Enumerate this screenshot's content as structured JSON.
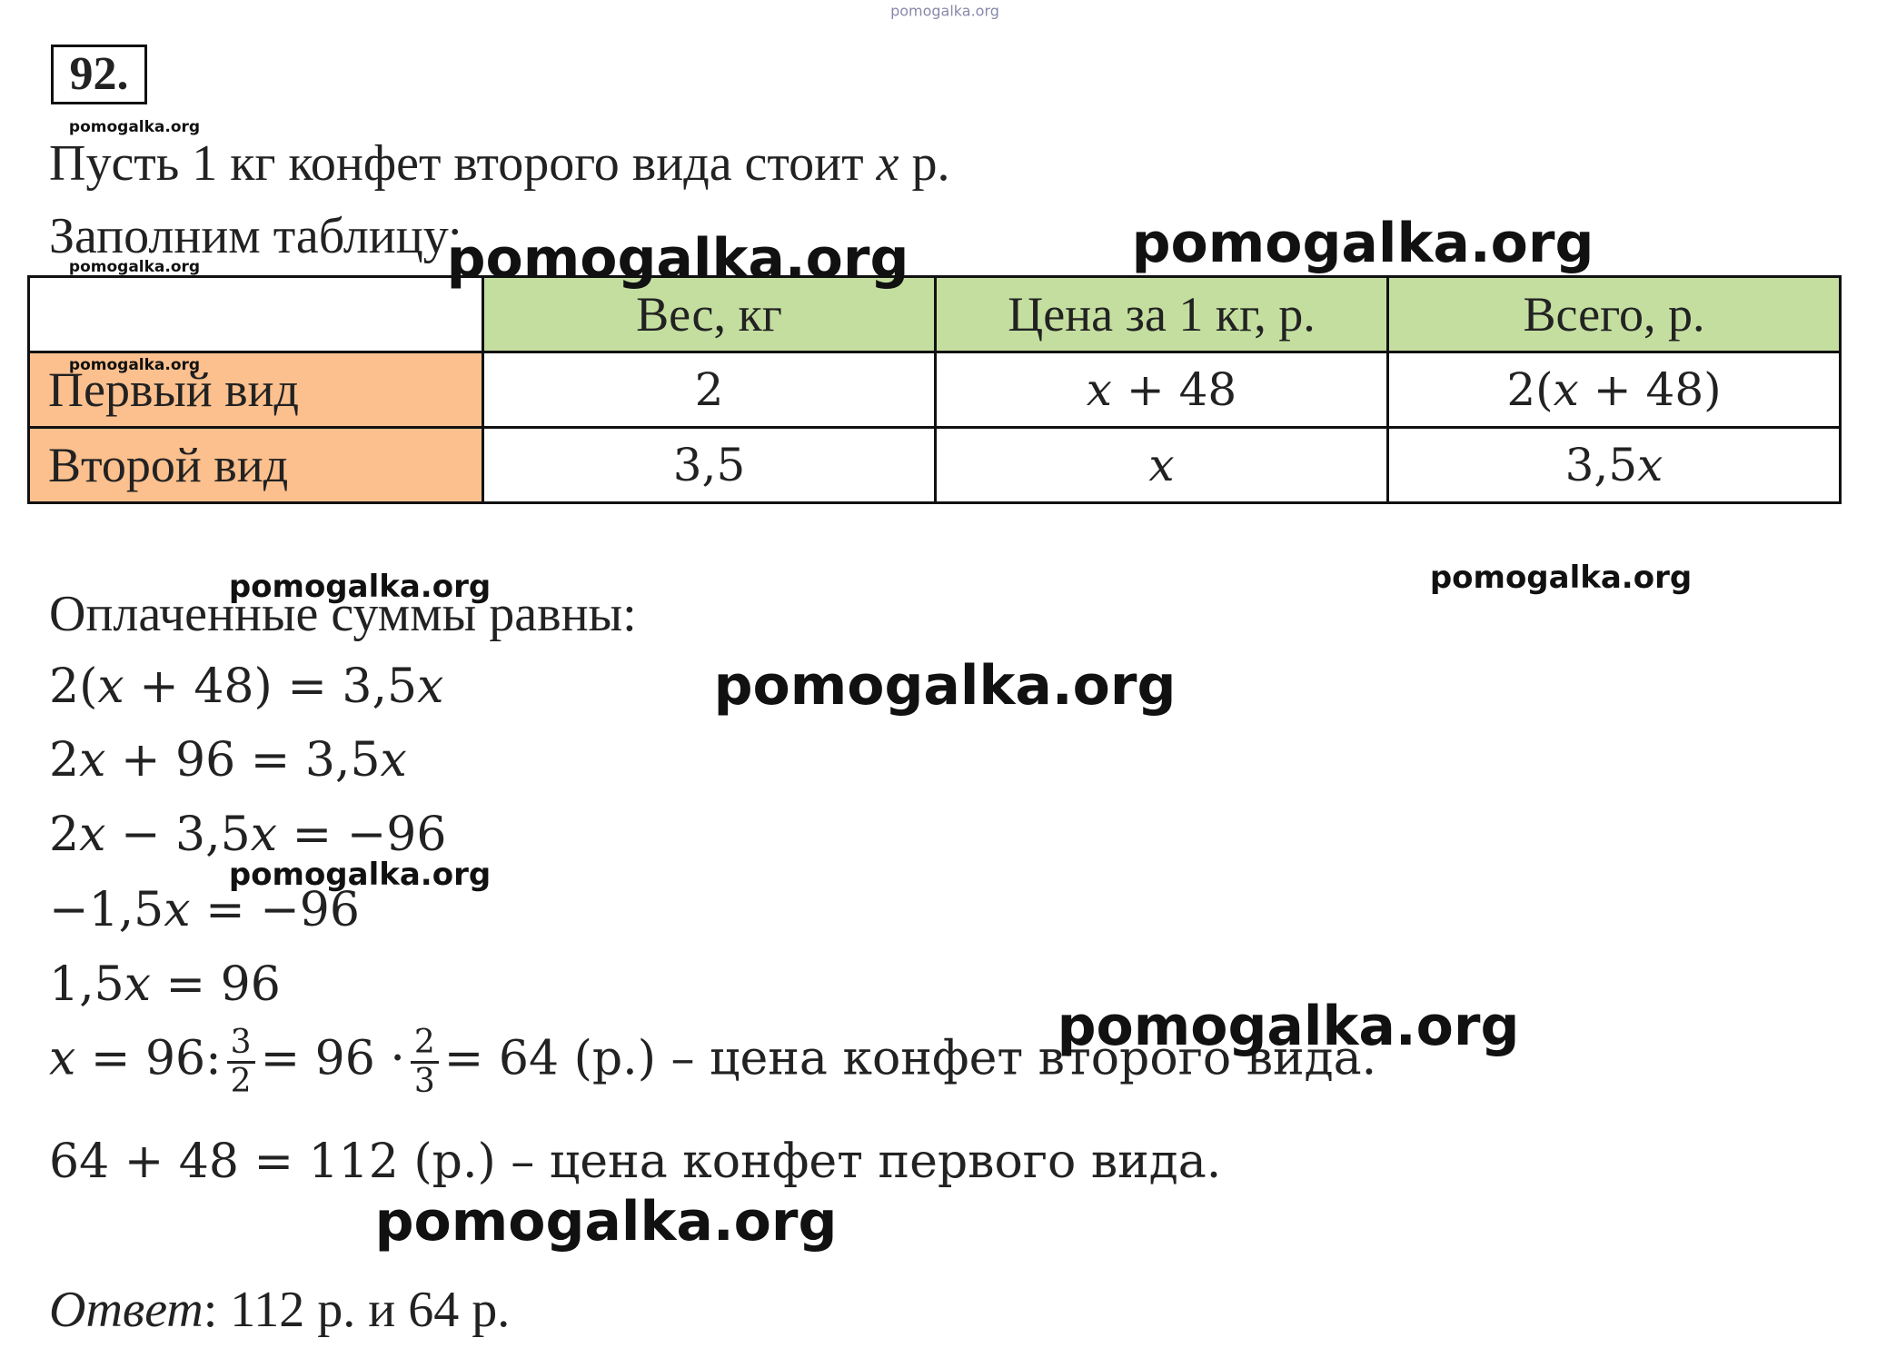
{
  "problem_number": "92.",
  "intro": [
    "Пусть 1 кг конфет второго вида стоит x р.",
    "Заполним таблицу:"
  ],
  "table": {
    "header": [
      "Вес, кг",
      "Цена за 1 кг, р.",
      "Всего, р."
    ],
    "rows": [
      [
        "Первый вид",
        "2",
        "x + 48",
        "2(x + 48)"
      ],
      [
        "Второй вид",
        "3,5",
        "x",
        "3,5x"
      ]
    ]
  },
  "solution_intro": "Оплаченные суммы равны:",
  "equations": [
    "2(x + 48) = 3,5x",
    "2x + 96 = 3,5x",
    "2x − 3,5x = −96",
    "−1,5x = −96",
    "1,5x = 96"
  ],
  "fraction_line": {
    "lead": "x = 96:",
    "frac1": {
      "num": "3",
      "den": "2"
    },
    "mid": "= 96 ·",
    "frac2": {
      "num": "2",
      "den": "3"
    },
    "tail": "= 64 (р.) – цена конфет второго вида."
  },
  "final_line": "64 + 48 = 112 (р.) – цена конфет первого вида.",
  "answer": {
    "label": "Ответ",
    "text": ": 112 р. и 64 р."
  },
  "watermarks": [
    "pomogalka.org",
    "pomogalka.org",
    "pomogalka.org",
    "pomogalka.org",
    "pomogalka.org",
    "pomogalka.org",
    "pomogalka.org",
    "pomogalka.org",
    "pomogalka.org",
    "pomogalka.org",
    "pomogalka.org",
    "pomogalka.org"
  ]
}
